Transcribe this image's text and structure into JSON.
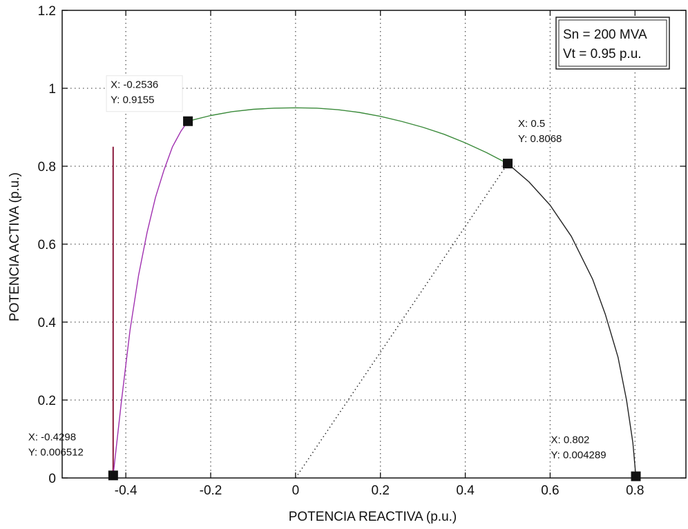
{
  "chart_data": {
    "type": "line",
    "xlabel": "POTENCIA REACTIVA (p.u.)",
    "ylabel": "POTENCIA ACTIVA (p.u.)",
    "xlim": [
      -0.55,
      0.92
    ],
    "ylim": [
      0,
      1.2
    ],
    "grid": true,
    "x_ticks": [
      {
        "value": -0.4,
        "label": "-0.4"
      },
      {
        "value": -0.2,
        "label": "-0.2"
      },
      {
        "value": 0,
        "label": "0"
      },
      {
        "value": 0.2,
        "label": "0.2"
      },
      {
        "value": 0.4,
        "label": "0.4"
      },
      {
        "value": 0.6,
        "label": "0.6"
      },
      {
        "value": 0.8,
        "label": "0.8"
      }
    ],
    "y_ticks": [
      {
        "value": 0,
        "label": "0"
      },
      {
        "value": 0.2,
        "label": "0.2"
      },
      {
        "value": 0.4,
        "label": "0.4"
      },
      {
        "value": 0.6,
        "label": "0.6"
      },
      {
        "value": 0.8,
        "label": "0.8"
      },
      {
        "value": 1,
        "label": "1"
      },
      {
        "value": 1.2,
        "label": "1.2"
      }
    ],
    "series": [
      {
        "color": "#8b1a3c",
        "style": "solid",
        "x": [
          -0.4298,
          -0.4298
        ],
        "y": [
          0.006512,
          0.85
        ]
      },
      {
        "color": "#a030b0",
        "style": "solid",
        "x": [
          -0.4298,
          -0.41,
          -0.39,
          -0.37,
          -0.35,
          -0.33,
          -0.31,
          -0.29,
          -0.27,
          -0.2536
        ],
        "y": [
          0.006512,
          0.2,
          0.38,
          0.52,
          0.63,
          0.72,
          0.79,
          0.85,
          0.89,
          0.9155
        ]
      },
      {
        "color": "#3a8a3a",
        "style": "solid",
        "x": [
          -0.2536,
          -0.2,
          -0.15,
          -0.1,
          -0.05,
          0,
          0.05,
          0.1,
          0.15,
          0.2,
          0.25,
          0.3,
          0.35,
          0.4,
          0.45,
          0.5
        ],
        "y": [
          0.9155,
          0.93,
          0.94,
          0.946,
          0.949,
          0.95,
          0.949,
          0.945,
          0.938,
          0.928,
          0.915,
          0.9,
          0.882,
          0.86,
          0.835,
          0.8068
        ]
      },
      {
        "color": "#222222",
        "style": "solid",
        "x": [
          0.5,
          0.55,
          0.6,
          0.65,
          0.7,
          0.73,
          0.76,
          0.78,
          0.795,
          0.802
        ],
        "y": [
          0.8068,
          0.76,
          0.7,
          0.62,
          0.51,
          0.42,
          0.31,
          0.2,
          0.09,
          0.004289
        ]
      },
      {
        "color": "#333333",
        "style": "dotted",
        "x": [
          0,
          0.5
        ],
        "y": [
          0,
          0.8068
        ]
      }
    ],
    "data_tips": [
      {
        "x": -0.2536,
        "y": 0.9155,
        "label_x": "X: -0.2536",
        "label_y": "Y: 0.9155"
      },
      {
        "x": 0.5,
        "y": 0.8068,
        "label_x": "X: 0.5",
        "label_y": "Y: 0.8068"
      },
      {
        "x": -0.4298,
        "y": 0.006512,
        "label_x": "X: -0.4298",
        "label_y": "Y: 0.006512"
      },
      {
        "x": 0.802,
        "y": 0.004289,
        "label_x": "X: 0.802",
        "label_y": "Y: 0.004289"
      }
    ],
    "annotation": {
      "lines": [
        "Sn = 200 MVA",
        "Vt = 0.95 p.u."
      ],
      "placement": "top-right"
    }
  }
}
